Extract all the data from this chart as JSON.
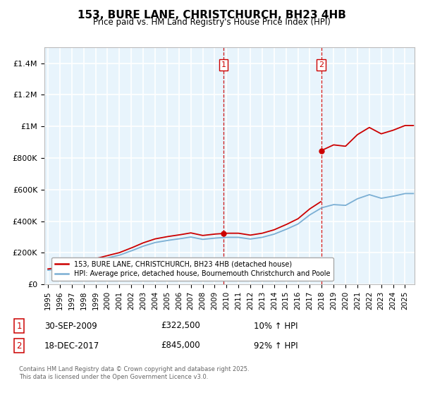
{
  "title": "153, BURE LANE, CHRISTCHURCH, BH23 4HB",
  "subtitle": "Price paid vs. HM Land Registry's House Price Index (HPI)",
  "ylim": [
    0,
    1500000
  ],
  "yticks": [
    0,
    200000,
    400000,
    600000,
    800000,
    1000000,
    1200000,
    1400000
  ],
  "ytick_labels": [
    "£0",
    "£200K",
    "£400K",
    "£600K",
    "£800K",
    "£1M",
    "£1.2M",
    "£1.4M"
  ],
  "xlim_start": 1994.7,
  "xlim_end": 2025.8,
  "xticks": [
    1995,
    1996,
    1997,
    1998,
    1999,
    2000,
    2001,
    2002,
    2003,
    2004,
    2005,
    2006,
    2007,
    2008,
    2009,
    2010,
    2011,
    2012,
    2013,
    2014,
    2015,
    2016,
    2017,
    2018,
    2019,
    2020,
    2021,
    2022,
    2023,
    2024,
    2025
  ],
  "purchase1_x": 2009.75,
  "purchase1_y": 322500,
  "purchase1_label": "1",
  "purchase1_date": "30-SEP-2009",
  "purchase1_price": "£322,500",
  "purchase1_hpi": "10% ↑ HPI",
  "purchase2_x": 2017.96,
  "purchase2_y": 845000,
  "purchase2_label": "2",
  "purchase2_date": "18-DEC-2017",
  "purchase2_price": "£845,000",
  "purchase2_hpi": "92% ↑ HPI",
  "vline1_x": 2009.75,
  "vline2_x": 2017.96,
  "legend_label1": "153, BURE LANE, CHRISTCHURCH, BH23 4HB (detached house)",
  "legend_label2": "HPI: Average price, detached house, Bournemouth Christchurch and Poole",
  "footnote": "Contains HM Land Registry data © Crown copyright and database right 2025.\nThis data is licensed under the Open Government Licence v3.0.",
  "line_color_red": "#cc0000",
  "line_color_blue": "#7bafd4",
  "background_color": "#e8f4fc",
  "grid_color": "#ffffff"
}
